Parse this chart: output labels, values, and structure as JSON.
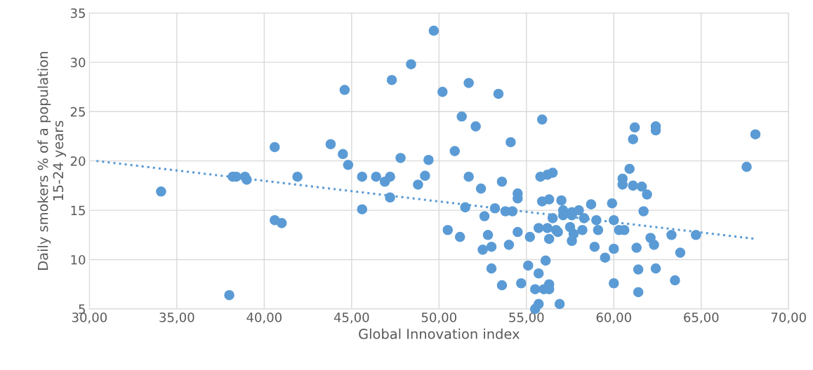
{
  "chart_data": {
    "type": "scatter",
    "xlabel": "Global Innovation index",
    "ylabel": "Daily smokers % of a population\n15-24 years",
    "xlim": [
      30,
      70
    ],
    "ylim": [
      5,
      35
    ],
    "xticks": [
      {
        "value": 30,
        "label": "30,00"
      },
      {
        "value": 35,
        "label": "35,00"
      },
      {
        "value": 40,
        "label": "40,00"
      },
      {
        "value": 45,
        "label": "45,00"
      },
      {
        "value": 50,
        "label": "50,00"
      },
      {
        "value": 55,
        "label": "55,00"
      },
      {
        "value": 60,
        "label": "60,00"
      },
      {
        "value": 65,
        "label": "65,00"
      },
      {
        "value": 70,
        "label": "70,00"
      }
    ],
    "yticks": [
      5,
      10,
      15,
      20,
      25,
      30,
      35
    ],
    "grid": true,
    "series": [
      {
        "marker": "circle",
        "color": "#5b9bd5",
        "x": [
          34.1,
          38.0,
          38.2,
          38.4,
          38.9,
          39.0,
          40.6,
          41.0,
          40.6,
          41.9,
          43.8,
          44.5,
          44.6,
          44.8,
          45.6,
          45.6,
          46.4,
          46.9,
          47.2,
          47.2,
          47.3,
          47.8,
          48.4,
          48.8,
          49.2,
          49.4,
          49.7,
          50.5,
          50.2,
          50.9,
          51.2,
          51.3,
          51.5,
          51.7,
          51.7,
          52.1,
          52.4,
          52.5,
          52.6,
          52.8,
          53.0,
          53.0,
          53.2,
          53.4,
          53.6,
          53.6,
          53.8,
          54.0,
          54.2,
          54.5,
          54.5,
          54.5,
          54.7,
          55.1,
          54.1,
          55.2,
          55.5,
          55.5,
          55.7,
          55.7,
          55.7,
          55.8,
          55.9,
          55.9,
          56.0,
          56.1,
          56.2,
          56.2,
          56.3,
          56.3,
          56.3,
          56.3,
          56.5,
          56.5,
          56.7,
          56.8,
          56.9,
          57.0,
          57.1,
          57.1,
          57.5,
          57.6,
          57.6,
          57.6,
          57.7,
          58.0,
          58.2,
          58.3,
          58.7,
          58.9,
          59.0,
          59.1,
          59.5,
          59.9,
          60.0,
          60.0,
          60.0,
          60.3,
          60.6,
          60.5,
          60.5,
          60.9,
          61.1,
          61.1,
          61.2,
          61.3,
          61.4,
          61.4,
          61.6,
          61.7,
          61.9,
          62.1,
          62.3,
          62.4,
          62.4,
          62.4,
          63.3,
          63.5,
          63.8,
          64.7,
          67.6,
          68.1
        ],
        "values": [
          16.9,
          6.4,
          18.4,
          18.4,
          18.4,
          18.1,
          14.0,
          13.7,
          21.4,
          18.4,
          21.7,
          20.7,
          27.2,
          19.6,
          18.4,
          15.1,
          18.4,
          17.9,
          18.4,
          16.3,
          28.2,
          20.3,
          29.8,
          17.6,
          18.5,
          20.1,
          33.2,
          13.0,
          27.0,
          21.0,
          12.3,
          24.5,
          15.3,
          27.9,
          18.4,
          23.5,
          17.2,
          11.0,
          14.4,
          12.5,
          11.3,
          9.1,
          15.2,
          26.8,
          7.4,
          17.9,
          14.9,
          11.5,
          14.9,
          16.2,
          16.7,
          12.8,
          7.6,
          9.4,
          21.9,
          12.3,
          7.0,
          5.0,
          13.2,
          5.5,
          8.6,
          18.4,
          24.2,
          15.9,
          7.0,
          9.9,
          13.2,
          18.6,
          12.1,
          16.1,
          7.5,
          7.0,
          18.8,
          14.2,
          13.0,
          12.8,
          5.5,
          16.0,
          15.0,
          14.5,
          13.3,
          11.9,
          14.8,
          14.5,
          12.6,
          15.0,
          13.0,
          14.2,
          15.6,
          11.3,
          14.0,
          13.0,
          10.2,
          15.7,
          7.6,
          11.1,
          14.0,
          13.0,
          13.0,
          17.6,
          18.2,
          19.2,
          17.5,
          22.2,
          23.4,
          11.2,
          9.0,
          6.7,
          17.4,
          14.9,
          16.6,
          12.2,
          11.5,
          23.1,
          23.5,
          9.1,
          12.5,
          7.9,
          10.7,
          12.5,
          19.4,
          22.7
        ]
      },
      {
        "type": "line",
        "color": "#5b9bd5",
        "line_style": "dotted",
        "x": [
          30.4,
          68.1
        ],
        "values": [
          20.0,
          12.1
        ]
      }
    ]
  }
}
